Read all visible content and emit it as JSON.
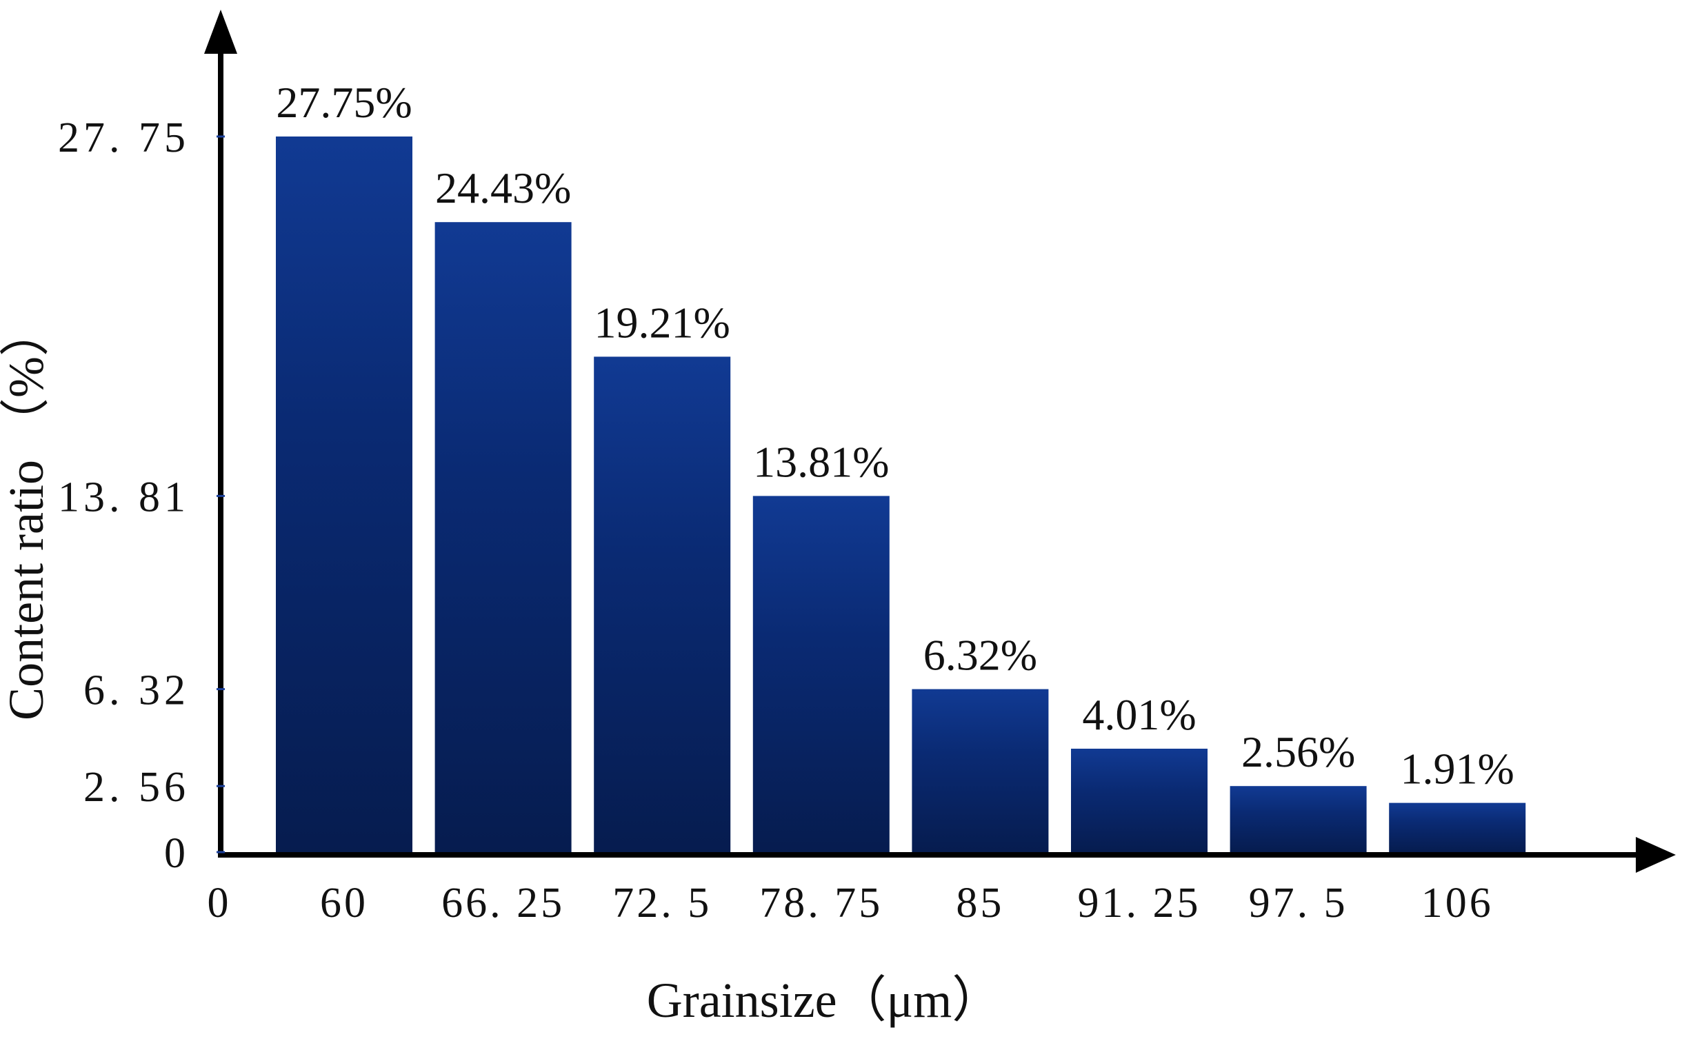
{
  "chart_data": {
    "type": "bar",
    "categories": [
      "60",
      "66. 25",
      "72. 5",
      "78. 75",
      "85",
      "91. 25",
      "97. 5",
      "106"
    ],
    "values": [
      27.75,
      24.43,
      19.21,
      13.81,
      6.32,
      4.01,
      2.56,
      1.91
    ],
    "data_labels": [
      "27.75%",
      "24.43%",
      "19.21%",
      "13.81%",
      "6.32%",
      "4.01%",
      "2.56%",
      "1.91%"
    ],
    "x_origin_label": "0",
    "yticks": [
      0,
      2.56,
      6.32,
      13.81,
      27.75
    ],
    "ytick_labels": [
      "0",
      "2. 56",
      "6. 32",
      "13. 81",
      "27. 75"
    ],
    "title": "",
    "xlabel": "Grainsize（μm）",
    "ylabel": "Content ratio （%）",
    "ylim": [
      0,
      27.75
    ],
    "grid": false,
    "legend": "none",
    "colors": {
      "bar_light": "#113a93",
      "bar_dark": "#061c4f",
      "axis": "#000000"
    }
  }
}
